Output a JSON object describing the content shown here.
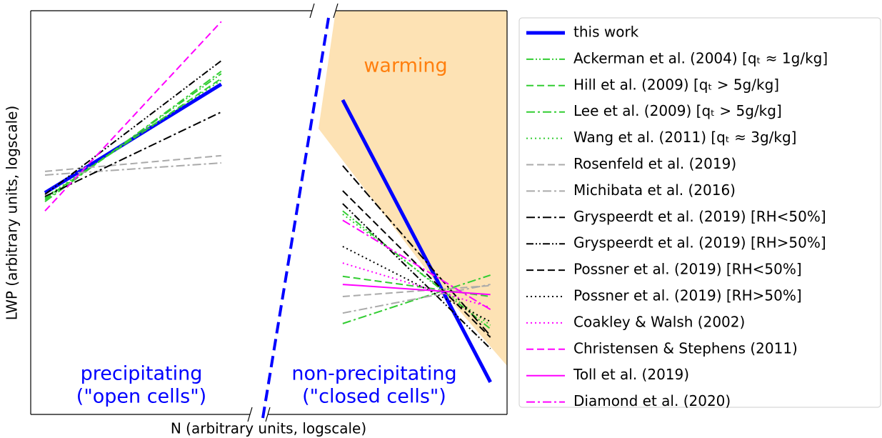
{
  "chart_data": {
    "type": "line",
    "xlabel": "N (arbitrary units, logscale)",
    "ylabel": "LWP (arbitrary units, logscale)",
    "annotations": [
      {
        "text": "warming",
        "color": "#ff7f0e"
      },
      {
        "text": "precipitating",
        "color": "#0000ff"
      },
      {
        "text": "(\"open cells\")",
        "color": "#0000ff"
      },
      {
        "text": "non-precipitating",
        "color": "#0000ff"
      },
      {
        "text": "(\"closed cells\")",
        "color": "#0000ff"
      }
    ],
    "xlim": [
      0,
      1
    ],
    "ylim": [
      0,
      1
    ],
    "x": [
      0.03,
      0.4,
      0.5,
      0.655,
      0.965
    ],
    "series": [
      {
        "name": "this work",
        "color": "#0000ff",
        "dash": "solid",
        "linewidth": 5,
        "values": [
          0.549,
          0.818,
          null,
          0.779,
          0.08
        ]
      },
      {
        "name": "Ackerman et al. (2004) [qₜ ≈ 1g/kg]",
        "color": "#32cd32",
        "dash": "dashdotdot",
        "linewidth": 2,
        "values": [
          0.531,
          0.844,
          null,
          0.504,
          0.212
        ]
      },
      {
        "name": "Hill et al. (2009) [qₜ > 5g/kg]",
        "color": "#32cd32",
        "dash": "dashed",
        "linewidth": 2,
        "values": [
          0.535,
          0.832,
          null,
          0.342,
          0.292
        ]
      },
      {
        "name": "Lee et al. (2009) [qₜ > 5g/kg]",
        "color": "#32cd32",
        "dash": "dashdot",
        "linewidth": 2,
        "values": [
          0.527,
          0.85,
          null,
          0.225,
          0.345
        ]
      },
      {
        "name": "Wang et al. (2011) [qₜ ≈ 3g/kg]",
        "color": "#32cd32",
        "dash": "dotted",
        "linewidth": 2,
        "values": [
          0.538,
          0.828,
          null,
          0.496,
          0.221
        ]
      },
      {
        "name": "Rosenfeld et al. (2019)",
        "color": "#aaaaaa",
        "dash": "dashed",
        "linewidth": 2,
        "values": [
          0.602,
          0.641,
          null,
          0.292,
          0.319
        ]
      },
      {
        "name": "Michibata et al. (2016)",
        "color": "#aaaaaa",
        "dash": "dashdot",
        "linewidth": 2,
        "values": [
          0.593,
          0.623,
          null,
          0.251,
          0.322
        ]
      },
      {
        "name": "Gryspeerdt et al. (2019) [RH<50%]",
        "color": "#000000",
        "dash": "dashdot",
        "linewidth": 2,
        "values": [
          0.54,
          0.749,
          null,
          0.616,
          0.195
        ]
      },
      {
        "name": "Gryspeerdt et al. (2019) [RH>50%]",
        "color": "#000000",
        "dash": "dashdotdot",
        "linewidth": 2,
        "values": [
          0.545,
          0.876,
          null,
          0.522,
          0.163
        ]
      },
      {
        "name": "Possner et al. (2019) [RH<50%]",
        "color": "#000000",
        "dash": "dashed",
        "linewidth": 2,
        "values": [
          null,
          null,
          null,
          0.554,
          0.191
        ]
      },
      {
        "name": "Possner et al. (2019) [RH>50%]",
        "color": "#000000",
        "dash": "dotted",
        "linewidth": 2,
        "values": [
          null,
          null,
          null,
          0.416,
          0.23
        ]
      },
      {
        "name": "Coakley & Walsh (2002)",
        "color": "#ff00ff",
        "dash": "dotted",
        "linewidth": 2,
        "values": [
          null,
          null,
          null,
          0.375,
          0.265
        ]
      },
      {
        "name": "Christensen & Stephens (2011)",
        "color": "#ff00ff",
        "dash": "dashed",
        "linewidth": 2,
        "values": [
          0.504,
          0.973,
          null,
          null,
          null
        ]
      },
      {
        "name": "Toll et al. (2019)",
        "color": "#ff00ff",
        "dash": "solid",
        "linewidth": 2,
        "values": [
          null,
          null,
          null,
          0.322,
          0.297
        ]
      },
      {
        "name": "Diamond et al. (2020)",
        "color": "#ff00ff",
        "dash": "dashdot",
        "linewidth": 2,
        "values": [
          null,
          null,
          null,
          0.481,
          0.26
        ]
      }
    ]
  }
}
